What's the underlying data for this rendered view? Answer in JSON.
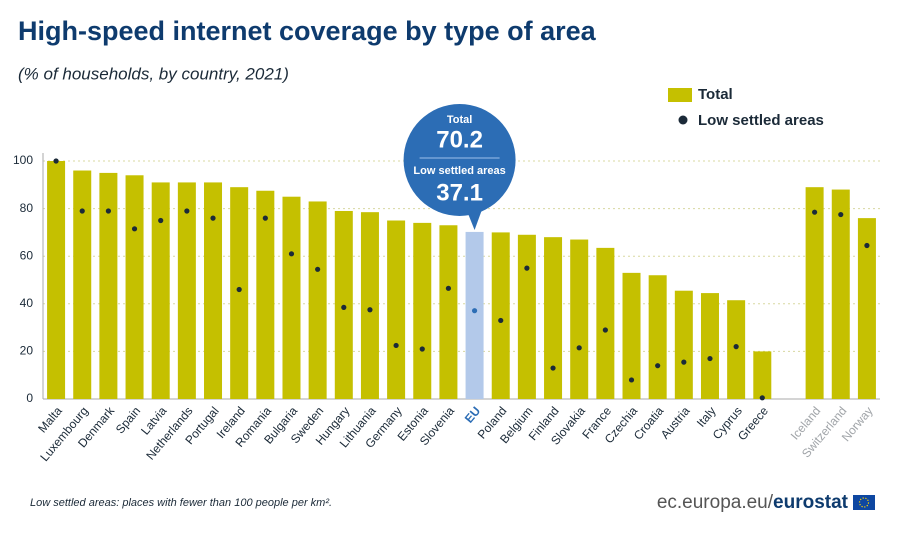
{
  "chart_data": {
    "type": "bar",
    "title": "High-speed internet coverage by type of area",
    "subtitle": "(% of households, by country, 2021)",
    "categories": [
      "Malta",
      "Luxembourg",
      "Denmark",
      "Spain",
      "Latvia",
      "Netherlands",
      "Portugal",
      "Ireland",
      "Romania",
      "Bulgaria",
      "Sweden",
      "Hungary",
      "Lithuania",
      "Germany",
      "Estonia",
      "Slovenia",
      "EU",
      "Poland",
      "Belgium",
      "Finland",
      "Slovakia",
      "France",
      "Czechia",
      "Croatia",
      "Austria",
      "Italy",
      "Cyprus",
      "Greece",
      null,
      "Iceland",
      "Switzerland",
      "Norway"
    ],
    "series": [
      {
        "name": "Total",
        "color": "#c5c000",
        "values": [
          100,
          96,
          95,
          94,
          91,
          91,
          91,
          89,
          87.5,
          85,
          83,
          79,
          78.5,
          75,
          74,
          73,
          70.2,
          70,
          69,
          68,
          67,
          63.5,
          53,
          52,
          45.5,
          44.5,
          41.5,
          20,
          null,
          89,
          88,
          76
        ]
      },
      {
        "name": "Low settled areas",
        "color": "#1b2a38",
        "values": [
          100,
          79,
          79,
          71.5,
          75,
          79,
          76,
          46,
          76,
          61,
          54.5,
          38.5,
          37.5,
          22.5,
          21,
          46.5,
          37.1,
          33,
          55,
          13,
          21.5,
          29,
          8,
          14,
          15.5,
          17,
          22,
          0.5,
          null,
          78.5,
          77.5,
          64.5
        ]
      }
    ],
    "bar_colors": [
      "#c5c000",
      "#c5c000",
      "#c5c000",
      "#c5c000",
      "#c5c000",
      "#c5c000",
      "#c5c000",
      "#c5c000",
      "#c5c000",
      "#c5c000",
      "#c5c000",
      "#c5c000",
      "#c5c000",
      "#c5c000",
      "#c5c000",
      "#c5c000",
      "#b3c9ea",
      "#c5c000",
      "#c5c000",
      "#c5c000",
      "#c5c000",
      "#c5c000",
      "#c5c000",
      "#c5c000",
      "#c5c000",
      "#c5c000",
      "#c5c000",
      "#c5c000",
      null,
      "#c5c000",
      "#c5c000",
      "#c5c000"
    ],
    "label_colors": [
      "#1b2a38",
      "#1b2a38",
      "#1b2a38",
      "#1b2a38",
      "#1b2a38",
      "#1b2a38",
      "#1b2a38",
      "#1b2a38",
      "#1b2a38",
      "#1b2a38",
      "#1b2a38",
      "#1b2a38",
      "#1b2a38",
      "#1b2a38",
      "#1b2a38",
      "#1b2a38",
      "#2c6db5",
      "#1b2a38",
      "#1b2a38",
      "#1b2a38",
      "#1b2a38",
      "#1b2a38",
      "#1b2a38",
      "#1b2a38",
      "#1b2a38",
      "#1b2a38",
      "#1b2a38",
      "#1b2a38",
      null,
      "#a0a4a8",
      "#a0a4a8",
      "#a0a4a8"
    ],
    "ylim": [
      0,
      100
    ],
    "yticks": [
      0,
      20,
      40,
      60,
      80,
      100
    ],
    "grid": true,
    "legend": "top-right",
    "footnote": "Low settled areas: places with fewer than 100 people per km².",
    "source": [
      "ec.europa.eu/",
      "eurostat"
    ]
  }
}
